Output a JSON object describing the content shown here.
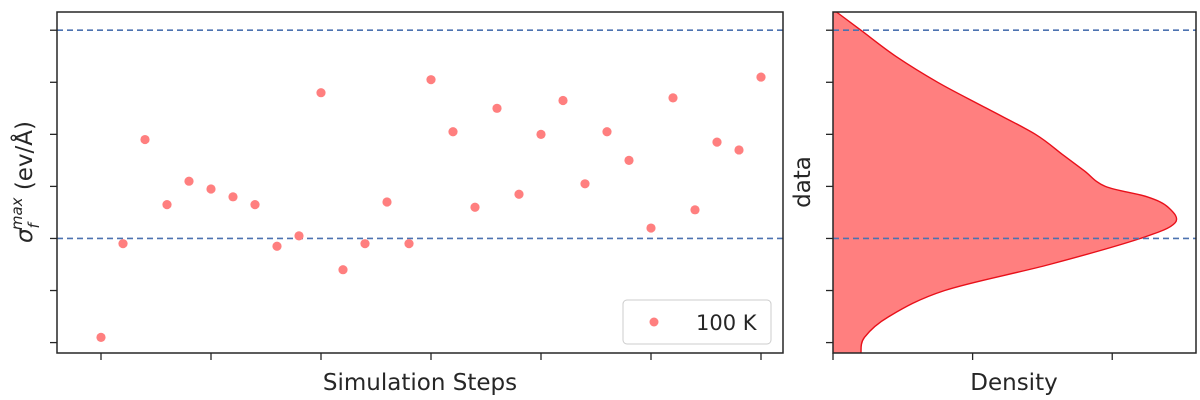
{
  "chart_data": [
    {
      "type": "scatter",
      "xlabel": "Simulation Steps",
      "ylabel_main": "σ",
      "ylabel_sub": "f",
      "ylabel_sup": "max",
      "ylabel_unit": " (ev/Å)",
      "xlim": [
        -2,
        31
      ],
      "ylim": [
        -0.2,
        6.35
      ],
      "xticks": [
        0,
        5,
        10,
        15,
        20,
        25,
        30
      ],
      "yticks": [
        0,
        1,
        2,
        3,
        4,
        5,
        6
      ],
      "tick_labels_shown": false,
      "grid": false,
      "hlines": [
        2,
        6
      ],
      "hline_color": "#4c72b0",
      "legend": {
        "position": "bottom-right",
        "entries": [
          "100 K"
        ]
      },
      "series": [
        {
          "name": "100 K",
          "color": "#ff7f7f",
          "x": [
            0,
            1,
            2,
            3,
            4,
            5,
            6,
            7,
            8,
            9,
            10,
            11,
            12,
            13,
            14,
            15,
            16,
            17,
            18,
            19,
            20,
            21,
            22,
            23,
            24,
            25,
            26,
            27,
            28,
            29,
            30
          ],
          "values": [
            0.1,
            1.9,
            3.9,
            2.65,
            3.1,
            2.95,
            2.8,
            2.65,
            1.85,
            2.05,
            4.8,
            1.4,
            1.9,
            2.7,
            1.9,
            5.05,
            4.05,
            2.6,
            4.5,
            2.85,
            4.0,
            4.65,
            3.05,
            4.05,
            3.5,
            2.2,
            4.7,
            2.55,
            3.85,
            3.7,
            5.1
          ]
        }
      ]
    },
    {
      "type": "area",
      "orientation": "horizontal",
      "xlabel": "Density",
      "ylabel": "data",
      "xlim": [
        0,
        0.52
      ],
      "ylim": [
        -0.2,
        6.35
      ],
      "xticks": [
        0,
        0.2,
        0.4
      ],
      "yticks": [
        0,
        1,
        2,
        3,
        4,
        5,
        6
      ],
      "tick_labels_shown": false,
      "hlines": [
        2,
        6
      ],
      "hline_color": "#4c72b0",
      "fill_color": "#ff7f7f",
      "line_color": "#e8101a",
      "y": [
        -0.2,
        0.1,
        0.5,
        1.0,
        1.5,
        2.0,
        2.3,
        2.6,
        2.8,
        3.0,
        3.3,
        3.6,
        4.0,
        4.5,
        5.0,
        5.5,
        6.0,
        6.35
      ],
      "density": [
        0.04,
        0.045,
        0.08,
        0.16,
        0.31,
        0.44,
        0.49,
        0.48,
        0.45,
        0.39,
        0.36,
        0.33,
        0.29,
        0.22,
        0.15,
        0.09,
        0.04,
        0.005
      ]
    }
  ]
}
